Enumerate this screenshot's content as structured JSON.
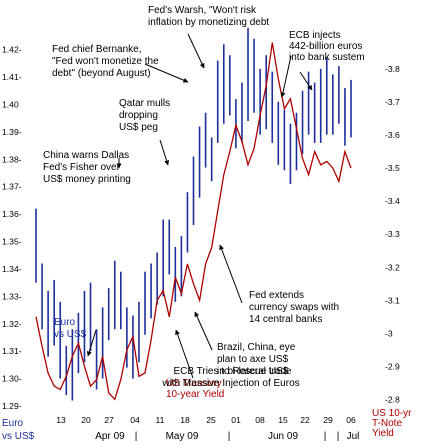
{
  "chart_data": {
    "type": "line",
    "title": "ECB Tries to Rescue US$ with Massive Injection of Euros",
    "left_axis": {
      "label_lines": [
        "Euro",
        "vs US$"
      ],
      "ticks": [
        1.29,
        1.3,
        1.31,
        1.32,
        1.33,
        1.34,
        1.35,
        1.36,
        1.37,
        1.38,
        1.39,
        1.4,
        1.41,
        1.42
      ],
      "tick_labels": [
        "1.29-",
        "1.30-",
        "1.31-",
        "1.32-",
        "1.33-",
        "1.34-",
        "1.35-",
        "1.36-",
        "1.37-",
        "1.38-",
        "1.39-",
        "1.40",
        "1.41-",
        "1.42-"
      ],
      "ylim": [
        1.29,
        1.425
      ]
    },
    "right_axis": {
      "label_lines": [
        "US 10-yr",
        "T-Note",
        "Yield"
      ],
      "ticks": [
        2.8,
        2.9,
        3.0,
        3.1,
        3.2,
        3.3,
        3.4,
        3.5,
        3.6,
        3.7,
        3.8
      ],
      "tick_labels": [
        "-2.8",
        "-2.9",
        "-3",
        "-3.1",
        "-3.2",
        "-3.3",
        "-3.4",
        "-3.5",
        "-3.6",
        "-3.7",
        "-3.8"
      ],
      "ylim": [
        2.78,
        3.9
      ]
    },
    "x_tick_labels": [
      "13",
      "20",
      "27",
      "04",
      "11",
      "18",
      "25",
      "01",
      "08",
      "15",
      "22",
      "29",
      "06"
    ],
    "month_labels": [
      "Apr 09",
      "May 09",
      "Jun 09",
      "Jul"
    ],
    "separators": [
      "|",
      "|",
      "|",
      "|"
    ],
    "series": [
      {
        "name": "Euro vs US$",
        "color": "#1c2f9c",
        "style": "high-low bars",
        "high": [
          1.362,
          1.342,
          1.332,
          1.336,
          1.328,
          1.312,
          1.318,
          1.324,
          1.332,
          1.335,
          1.318,
          1.326,
          1.333,
          1.343,
          1.339,
          1.326,
          1.323,
          1.328,
          1.339,
          1.342,
          1.346,
          1.358,
          1.358,
          1.348,
          1.352,
          1.368,
          1.381,
          1.392,
          1.397,
          1.388,
          1.416,
          1.422,
          1.418,
          1.402,
          1.408,
          1.428,
          1.424,
          1.413,
          1.418,
          1.412,
          1.401,
          1.398,
          1.393,
          1.397,
          1.405,
          1.412,
          1.408,
          1.413,
          1.417,
          1.411,
          1.414,
          1.406,
          1.409
        ],
        "low": [
          1.335,
          1.318,
          1.308,
          1.312,
          1.3,
          1.294,
          1.292,
          1.302,
          1.306,
          1.31,
          1.296,
          1.3,
          1.314,
          1.318,
          1.318,
          1.304,
          1.3,
          1.306,
          1.316,
          1.322,
          1.327,
          1.33,
          1.338,
          1.328,
          1.33,
          1.346,
          1.356,
          1.366,
          1.377,
          1.372,
          1.386,
          1.393,
          1.396,
          1.384,
          1.386,
          1.394,
          1.397,
          1.389,
          1.391,
          1.386,
          1.378,
          1.376,
          1.371,
          1.376,
          1.382,
          1.389,
          1.386,
          1.386,
          1.389,
          1.389,
          1.393,
          1.385,
          1.388
        ]
      },
      {
        "name": "US Treasury 10-year Yield",
        "color": "#b00000",
        "style": "line",
        "values": [
          3.05,
          2.96,
          2.88,
          2.84,
          2.83,
          2.87,
          2.93,
          2.97,
          2.9,
          2.84,
          2.86,
          2.93,
          2.82,
          2.8,
          2.86,
          2.95,
          2.99,
          2.87,
          2.88,
          2.98,
          3.1,
          3.13,
          3.05,
          3.17,
          3.12,
          3.21,
          3.15,
          3.1,
          3.21,
          3.26,
          3.37,
          3.48,
          3.55,
          3.63,
          3.58,
          3.51,
          3.56,
          3.66,
          3.75,
          3.88,
          3.77,
          3.68,
          3.71,
          3.62,
          3.53,
          3.48,
          3.55,
          3.51,
          3.52,
          3.5,
          3.46,
          3.55,
          3.5
        ]
      }
    ],
    "annotations": [
      {
        "lines": [
          "Fed's Warsh, \"Won't risk",
          "inflation by monetizing debt"
        ]
      },
      {
        "lines": [
          "ECB injects",
          "442-billion euros",
          "into bank sustem"
        ]
      },
      {
        "lines": [
          "Fed chief Bernanke,",
          "\"Fed won't monetize the",
          "debt\" (beyond August)"
        ]
      },
      {
        "lines": [
          "Qatar mulls",
          "dropping",
          "US$ peg"
        ]
      },
      {
        "lines": [
          "China warns Dallas",
          "Fed's Fisher over",
          "US$ money printing"
        ]
      },
      {
        "lines": [
          "Fed extends",
          "currency swaps with",
          "14 central banks"
        ]
      },
      {
        "lines": [
          "Euro",
          "vs US$"
        ]
      },
      {
        "lines": [
          "Brazil, China, eye",
          "plan to axe US$",
          "in bi-lateral trade"
        ]
      },
      {
        "lines": [
          "US Treasury",
          "10-year Yield"
        ]
      },
      {
        "lines": [
          "ECB Tries to Rescue US$",
          "with Massive Injection of Euros"
        ]
      }
    ]
  }
}
